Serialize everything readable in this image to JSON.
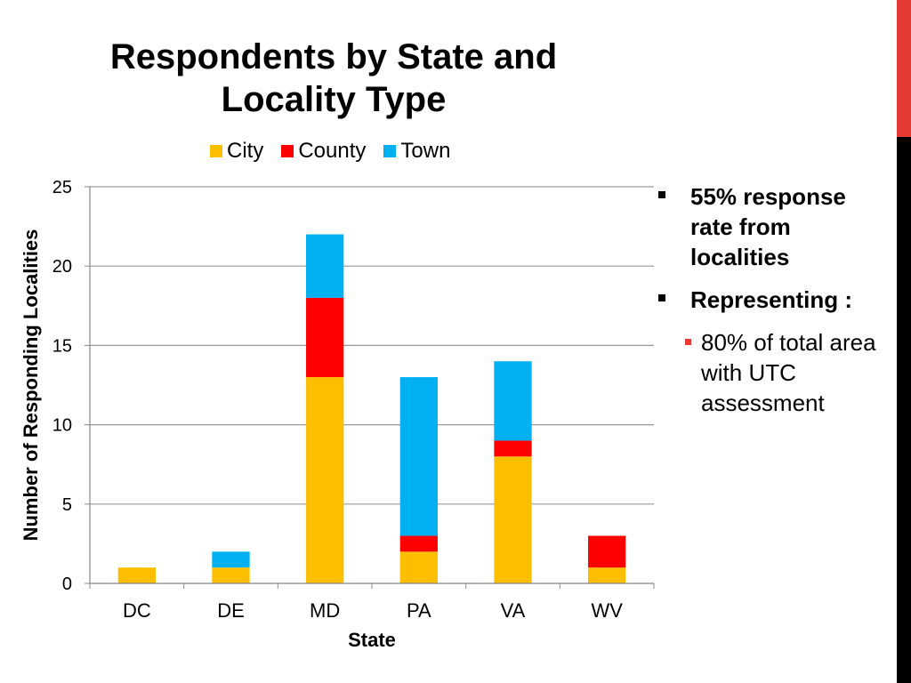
{
  "colors": {
    "city": "#fcbf00",
    "county": "#ff0000",
    "town": "#00b0f0",
    "accent_red": "#e63b35",
    "grid": "#999999"
  },
  "chart_data": {
    "type": "bar",
    "stacked": true,
    "title": "Respondents by State and Locality Type",
    "xlabel": "State",
    "ylabel": "Number of Responding Localities",
    "categories": [
      "DC",
      "DE",
      "MD",
      "PA",
      "VA",
      "WV"
    ],
    "series": [
      {
        "name": "City",
        "values": [
          1,
          1,
          13,
          2,
          8,
          1
        ]
      },
      {
        "name": "County",
        "values": [
          0,
          0,
          5,
          1,
          1,
          2
        ]
      },
      {
        "name": "Town",
        "values": [
          0,
          1,
          4,
          10,
          5,
          0
        ]
      }
    ],
    "ylim": [
      0,
      25
    ],
    "yticks": [
      0,
      5,
      10,
      15,
      20,
      25
    ],
    "grid": true,
    "legend_position": "top"
  },
  "bullets": [
    {
      "text": "55% response rate from localities"
    },
    {
      "text": "Representing :"
    }
  ],
  "sub_bullets": [
    {
      "text": "80% of total area with UTC assessment"
    }
  ]
}
